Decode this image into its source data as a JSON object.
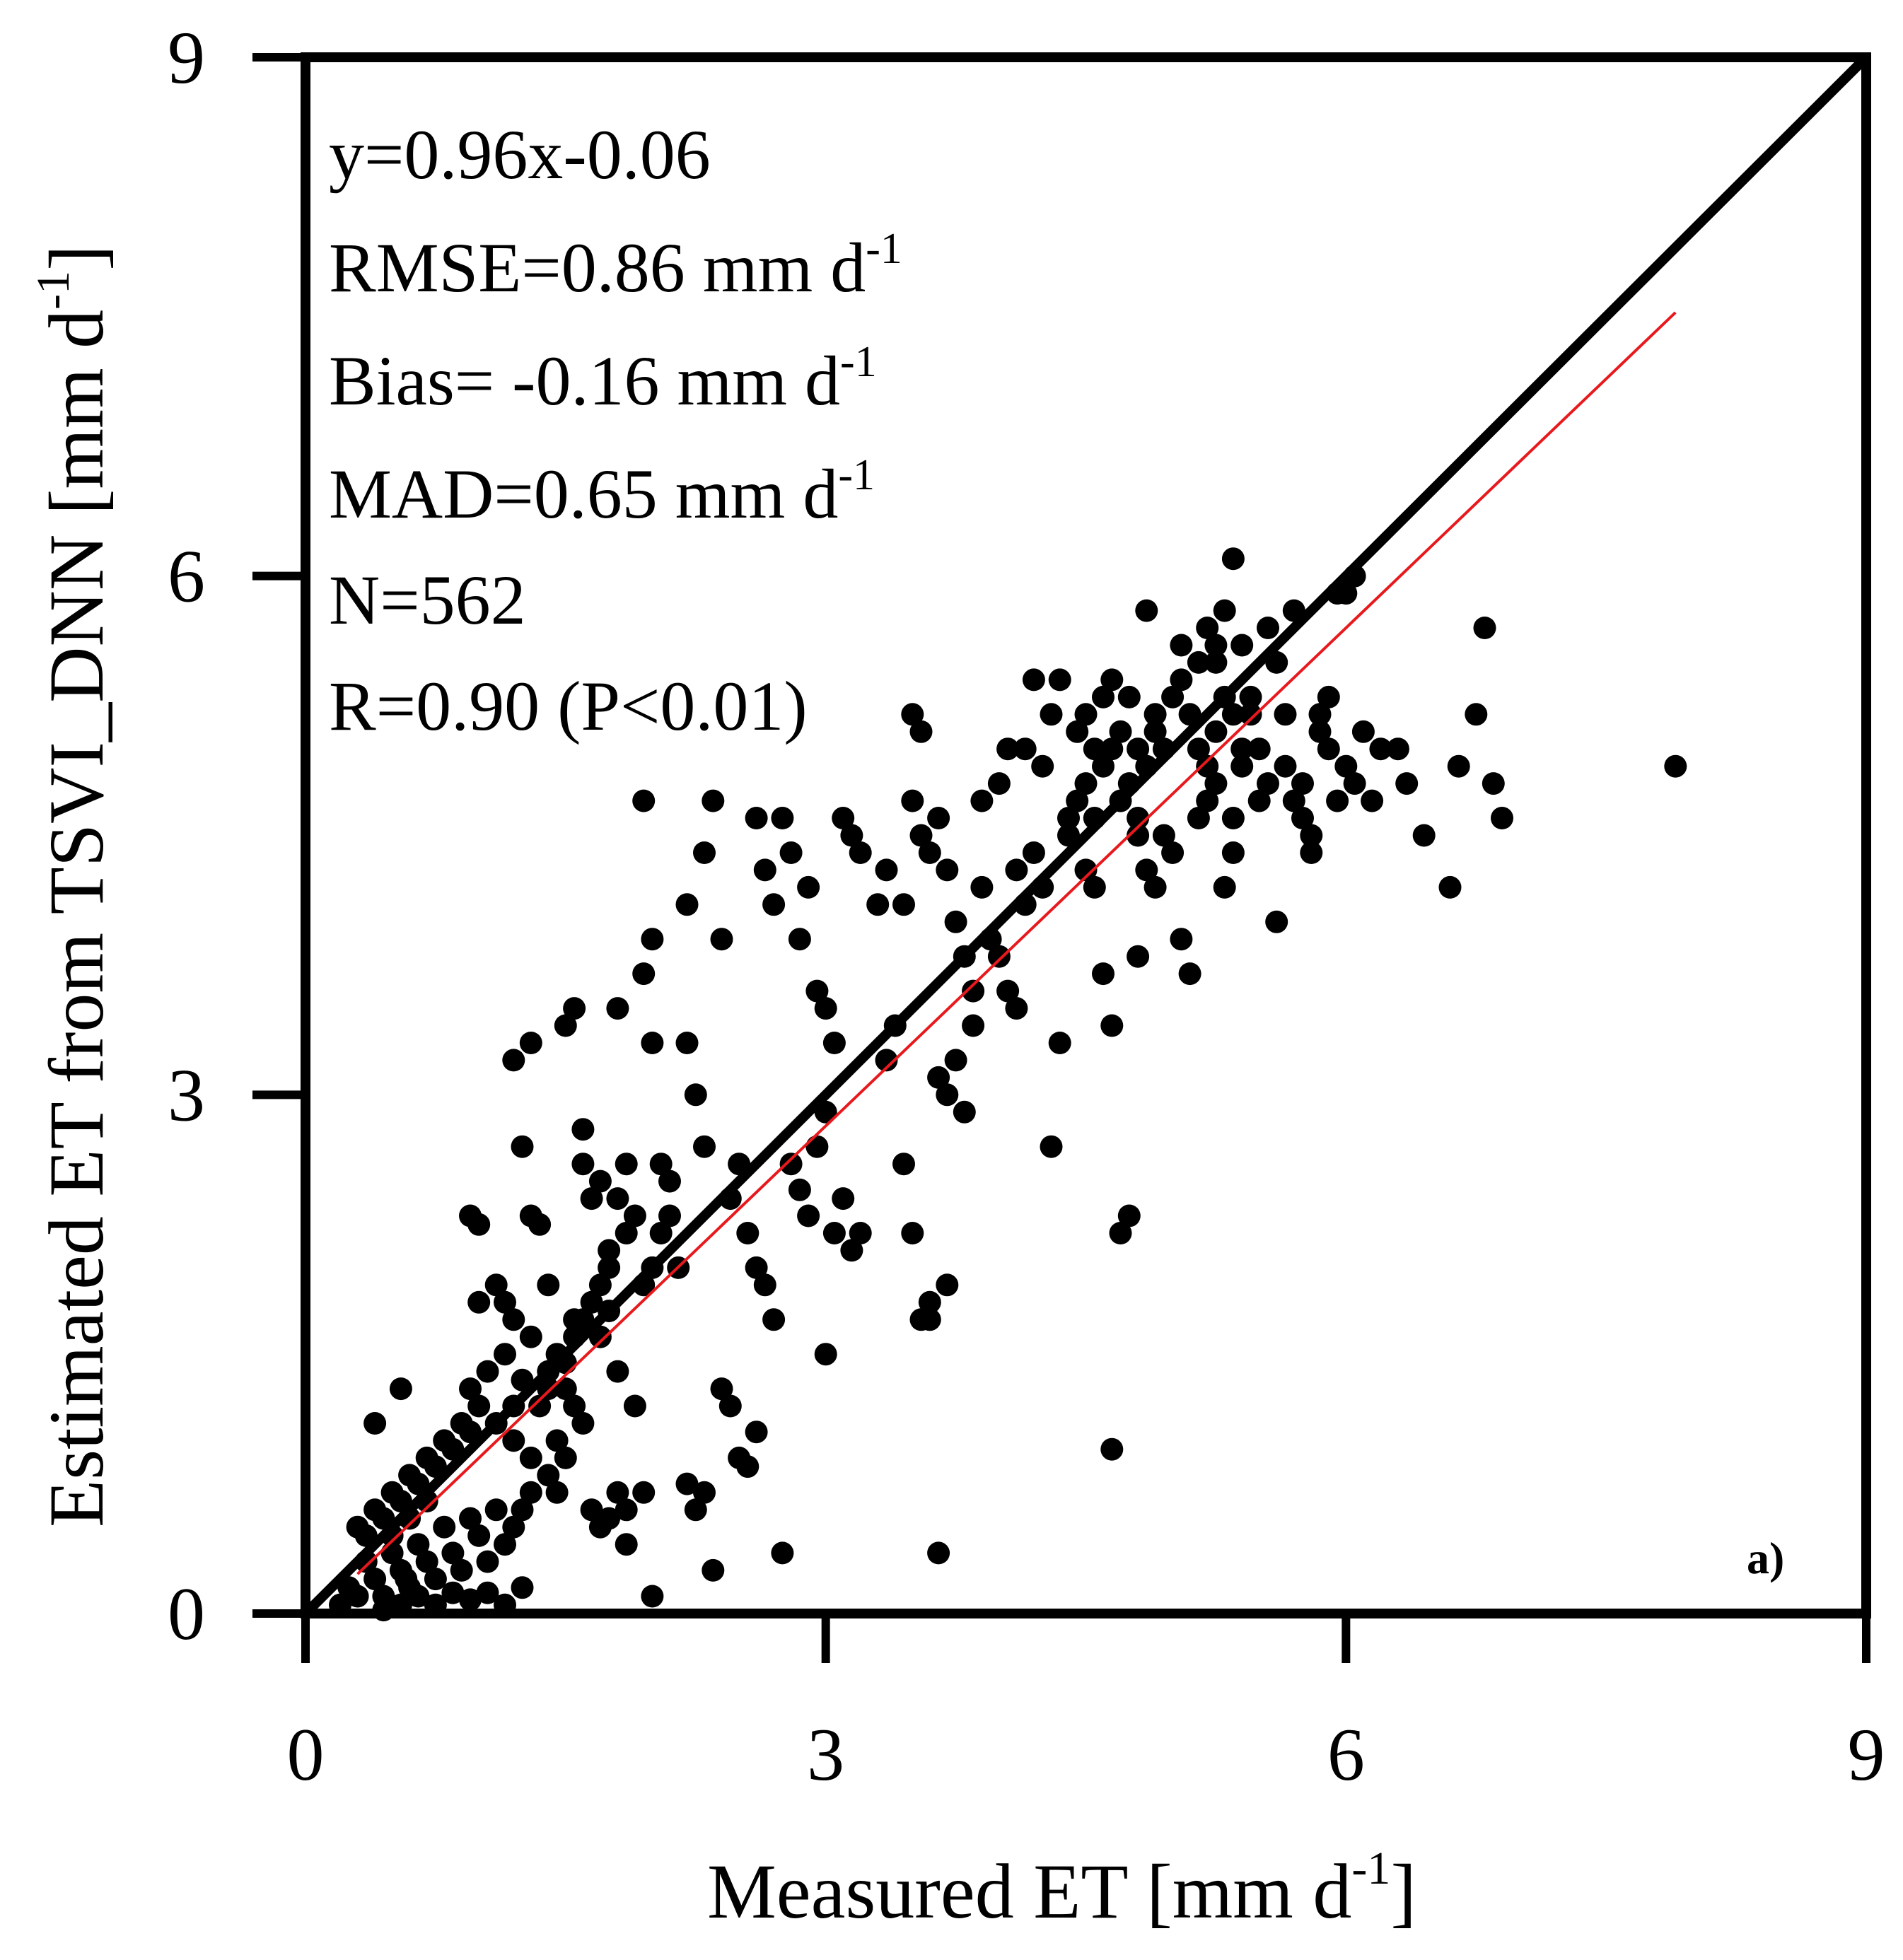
{
  "chart_data": {
    "type": "scatter",
    "xlabel": "Measured ET [mm d",
    "ylabel": "Estimated ET from TSVI_DNN [mm d",
    "unit_sup": "-1",
    "label_close": "]",
    "xlim": [
      0,
      9
    ],
    "ylim": [
      0,
      9
    ],
    "xticks": [
      "0",
      "3",
      "6",
      "9"
    ],
    "yticks": [
      "0",
      "3",
      "6",
      "9"
    ],
    "panel_label": "a)",
    "stats": [
      {
        "text": "y=0.96x-0.06",
        "sup": ""
      },
      {
        "text": "RMSE=0.86 mm d",
        "sup": "-1"
      },
      {
        "text": "Bias= -0.16 mm d",
        "sup": "-1"
      },
      {
        "text": "MAD=0.65 mm d",
        "sup": "-1"
      },
      {
        "text": "N=562",
        "sup": ""
      },
      {
        "text": "R=0.90 (P<0.01)",
        "sup": ""
      }
    ],
    "one_to_one_line": {
      "from": [
        0,
        0
      ],
      "to": [
        9,
        9
      ],
      "color": "#000000"
    },
    "fit_line": {
      "slope": 0.96,
      "intercept": -0.06,
      "x_range": [
        0.3,
        7.9
      ],
      "color": "#e8191d"
    },
    "points_color": "#000000",
    "points": [
      [
        0.2,
        0.05
      ],
      [
        0.25,
        0.15
      ],
      [
        0.3,
        0.1
      ],
      [
        0.35,
        0.3
      ],
      [
        0.4,
        0.2
      ],
      [
        0.45,
        0.1
      ],
      [
        0.5,
        0.35
      ],
      [
        0.55,
        0.25
      ],
      [
        0.6,
        0.15
      ],
      [
        0.65,
        0.4
      ],
      [
        0.7,
        0.3
      ],
      [
        0.75,
        0.2
      ],
      [
        0.8,
        0.5
      ],
      [
        0.85,
        0.35
      ],
      [
        0.9,
        0.25
      ],
      [
        0.95,
        0.55
      ],
      [
        1.0,
        0.45
      ],
      [
        1.05,
        0.3
      ],
      [
        1.1,
        0.6
      ],
      [
        1.15,
        0.4
      ],
      [
        0.3,
        0.5
      ],
      [
        0.4,
        0.6
      ],
      [
        0.5,
        0.7
      ],
      [
        0.6,
        0.8
      ],
      [
        0.7,
        0.9
      ],
      [
        0.8,
        1.0
      ],
      [
        0.9,
        1.1
      ],
      [
        0.5,
        0.45
      ],
      [
        0.6,
        0.55
      ],
      [
        0.7,
        0.65
      ],
      [
        0.35,
        0.45
      ],
      [
        0.45,
        0.55
      ],
      [
        0.55,
        0.65
      ],
      [
        0.65,
        0.75
      ],
      [
        0.75,
        0.85
      ],
      [
        0.85,
        0.95
      ],
      [
        0.95,
        1.05
      ],
      [
        1.2,
        0.5
      ],
      [
        1.25,
        0.6
      ],
      [
        1.3,
        0.7
      ],
      [
        0.55,
        0.05
      ],
      [
        0.65,
        0.1
      ],
      [
        0.75,
        0.05
      ],
      [
        0.85,
        0.12
      ],
      [
        0.95,
        0.08
      ],
      [
        1.05,
        0.12
      ],
      [
        1.15,
        0.05
      ],
      [
        1.25,
        0.15
      ],
      [
        0.45,
        0.02
      ],
      [
        0.58,
        0.2
      ],
      [
        0.4,
        1.1
      ],
      [
        0.55,
        1.3
      ],
      [
        0.95,
        2.3
      ],
      [
        1.0,
        2.25
      ],
      [
        1.15,
        1.8
      ],
      [
        1.2,
        3.2
      ],
      [
        1.25,
        2.7
      ],
      [
        1.3,
        3.3
      ],
      [
        1.3,
        2.3
      ],
      [
        1.35,
        2.25
      ],
      [
        1.4,
        1.9
      ],
      [
        1.45,
        1.5
      ],
      [
        1.5,
        1.45
      ],
      [
        1.55,
        1.7
      ],
      [
        1.6,
        2.8
      ],
      [
        1.65,
        2.4
      ],
      [
        1.7,
        1.6
      ],
      [
        1.75,
        1.75
      ],
      [
        1.8,
        3.5
      ],
      [
        1.85,
        2.2
      ],
      [
        1.5,
        3.4
      ],
      [
        1.55,
        3.5
      ],
      [
        1.6,
        2.6
      ],
      [
        1.7,
        2.5
      ],
      [
        1.75,
        2.0
      ],
      [
        1.8,
        1.4
      ],
      [
        1.9,
        1.2
      ],
      [
        1.95,
        0.7
      ],
      [
        2.0,
        0.1
      ],
      [
        1.85,
        0.4
      ],
      [
        1.4,
        0.8
      ],
      [
        1.45,
        0.7
      ],
      [
        1.5,
        0.9
      ],
      [
        1.55,
        1.2
      ],
      [
        1.6,
        1.1
      ],
      [
        1.65,
        0.6
      ],
      [
        1.7,
        0.5
      ],
      [
        1.75,
        0.55
      ],
      [
        1.8,
        0.7
      ],
      [
        1.85,
        0.6
      ],
      [
        1.95,
        4.7
      ],
      [
        2.0,
        3.9
      ],
      [
        1.95,
        3.7
      ],
      [
        2.0,
        3.3
      ],
      [
        2.05,
        2.6
      ],
      [
        2.1,
        2.5
      ],
      [
        2.15,
        2.0
      ],
      [
        2.2,
        3.3
      ],
      [
        2.25,
        3.0
      ],
      [
        2.3,
        2.7
      ],
      [
        2.2,
        4.1
      ],
      [
        2.3,
        4.4
      ],
      [
        2.35,
        4.7
      ],
      [
        2.4,
        3.9
      ],
      [
        2.45,
        2.4
      ],
      [
        2.5,
        2.6
      ],
      [
        2.55,
        2.2
      ],
      [
        2.6,
        2.0
      ],
      [
        2.65,
        1.9
      ],
      [
        2.7,
        1.7
      ],
      [
        2.25,
        0.6
      ],
      [
        2.3,
        0.7
      ],
      [
        2.35,
        0.25
      ],
      [
        2.4,
        1.3
      ],
      [
        2.45,
        1.2
      ],
      [
        2.5,
        0.9
      ],
      [
        2.55,
        0.85
      ],
      [
        2.6,
        1.05
      ],
      [
        2.75,
        0.35
      ],
      [
        2.2,
        0.75
      ],
      [
        2.6,
        4.6
      ],
      [
        2.65,
        4.3
      ],
      [
        2.7,
        4.1
      ],
      [
        2.75,
        4.6
      ],
      [
        2.8,
        4.4
      ],
      [
        2.85,
        3.9
      ],
      [
        2.9,
        4.2
      ],
      [
        2.95,
        3.6
      ],
      [
        3.0,
        3.5
      ],
      [
        3.05,
        3.3
      ],
      [
        2.8,
        2.6
      ],
      [
        2.85,
        2.45
      ],
      [
        2.9,
        2.3
      ],
      [
        2.95,
        2.7
      ],
      [
        3.0,
        2.9
      ],
      [
        3.05,
        2.2
      ],
      [
        3.1,
        2.4
      ],
      [
        3.15,
        2.1
      ],
      [
        3.2,
        2.2
      ],
      [
        3.0,
        1.5
      ],
      [
        3.1,
        4.6
      ],
      [
        3.15,
        4.5
      ],
      [
        3.2,
        4.4
      ],
      [
        3.3,
        4.1
      ],
      [
        3.35,
        3.2
      ],
      [
        3.4,
        3.4
      ],
      [
        3.45,
        2.6
      ],
      [
        3.5,
        2.2
      ],
      [
        3.55,
        1.7
      ],
      [
        3.6,
        1.8
      ],
      [
        3.35,
        4.3
      ],
      [
        3.45,
        4.1
      ],
      [
        3.5,
        4.7
      ],
      [
        3.55,
        4.5
      ],
      [
        3.6,
        4.4
      ],
      [
        3.65,
        4.6
      ],
      [
        3.7,
        4.3
      ],
      [
        3.75,
        4.0
      ],
      [
        3.8,
        3.8
      ],
      [
        3.85,
        3.6
      ],
      [
        3.5,
        5.2
      ],
      [
        3.55,
        5.1
      ],
      [
        3.65,
        3.1
      ],
      [
        3.7,
        3.0
      ],
      [
        3.75,
        3.2
      ],
      [
        3.8,
        2.9
      ],
      [
        3.7,
        1.9
      ],
      [
        3.65,
        0.35
      ],
      [
        3.6,
        1.7
      ],
      [
        3.85,
        3.4
      ],
      [
        3.9,
        4.7
      ],
      [
        4.0,
        4.8
      ],
      [
        4.05,
        5.0
      ],
      [
        4.1,
        4.3
      ],
      [
        4.15,
        5.0
      ],
      [
        4.2,
        5.4
      ],
      [
        4.25,
        4.9
      ],
      [
        4.3,
        5.2
      ],
      [
        4.35,
        5.4
      ],
      [
        4.4,
        4.6
      ],
      [
        3.9,
        4.2
      ],
      [
        3.95,
        3.9
      ],
      [
        4.0,
        3.8
      ],
      [
        4.05,
        3.6
      ],
      [
        4.1,
        3.5
      ],
      [
        4.15,
        4.1
      ],
      [
        4.2,
        4.4
      ],
      [
        4.25,
        4.2
      ],
      [
        4.3,
        2.7
      ],
      [
        4.35,
        3.3
      ],
      [
        4.4,
        4.5
      ],
      [
        4.45,
        4.7
      ],
      [
        4.5,
        4.8
      ],
      [
        4.55,
        4.6
      ],
      [
        4.6,
        4.9
      ],
      [
        4.65,
        5.0
      ],
      [
        4.7,
        4.7
      ],
      [
        4.75,
        4.8
      ],
      [
        4.8,
        4.6
      ],
      [
        4.85,
        4.9
      ],
      [
        4.45,
        5.1
      ],
      [
        4.5,
        5.2
      ],
      [
        4.55,
        5.0
      ],
      [
        4.6,
        5.3
      ],
      [
        4.65,
        5.4
      ],
      [
        4.7,
        5.1
      ],
      [
        4.75,
        5.3
      ],
      [
        4.8,
        4.5
      ],
      [
        4.85,
        5.8
      ],
      [
        4.9,
        5.2
      ],
      [
        4.5,
        4.3
      ],
      [
        4.55,
        4.2
      ],
      [
        4.6,
        3.7
      ],
      [
        4.65,
        3.4
      ],
      [
        4.7,
        2.2
      ],
      [
        4.75,
        2.3
      ],
      [
        4.8,
        3.8
      ],
      [
        4.85,
        4.3
      ],
      [
        4.9,
        4.2
      ],
      [
        4.65,
        0.95
      ],
      [
        4.95,
        5.0
      ],
      [
        5.0,
        5.3
      ],
      [
        5.05,
        5.4
      ],
      [
        5.1,
        5.2
      ],
      [
        5.15,
        5.0
      ],
      [
        5.2,
        4.9
      ],
      [
        5.25,
        5.1
      ],
      [
        5.3,
        5.3
      ],
      [
        5.35,
        5.2
      ],
      [
        5.4,
        5.0
      ],
      [
        4.95,
        4.5
      ],
      [
        5.0,
        4.4
      ],
      [
        5.05,
        3.9
      ],
      [
        5.1,
        3.7
      ],
      [
        5.15,
        4.6
      ],
      [
        5.2,
        4.7
      ],
      [
        5.25,
        4.8
      ],
      [
        5.3,
        4.2
      ],
      [
        5.35,
        4.4
      ],
      [
        5.4,
        4.9
      ],
      [
        5.2,
        5.7
      ],
      [
        5.25,
        5.5
      ],
      [
        5.3,
        5.8
      ],
      [
        5.35,
        6.1
      ],
      [
        5.4,
        5.6
      ],
      [
        5.45,
        5.3
      ],
      [
        5.5,
        5.0
      ],
      [
        5.55,
        4.8
      ],
      [
        5.6,
        4.0
      ],
      [
        5.65,
        4.9
      ],
      [
        5.7,
        5.8
      ],
      [
        5.75,
        4.8
      ],
      [
        5.8,
        4.5
      ],
      [
        5.85,
        5.2
      ],
      [
        5.9,
        5.0
      ],
      [
        5.95,
        4.7
      ],
      [
        6.0,
        4.9
      ],
      [
        6.05,
        4.8
      ],
      [
        6.1,
        5.1
      ],
      [
        6.15,
        4.7
      ],
      [
        5.55,
        5.7
      ],
      [
        5.6,
        5.5
      ],
      [
        5.65,
        5.2
      ],
      [
        5.7,
        4.7
      ],
      [
        5.75,
        4.6
      ],
      [
        5.8,
        4.4
      ],
      [
        5.85,
        5.1
      ],
      [
        5.9,
        5.3
      ],
      [
        5.95,
        5.9
      ],
      [
        6.0,
        5.9
      ],
      [
        6.2,
        5.0
      ],
      [
        6.3,
        5.0
      ],
      [
        6.35,
        4.8
      ],
      [
        6.45,
        4.5
      ],
      [
        6.6,
        4.2
      ],
      [
        6.65,
        4.9
      ],
      [
        6.75,
        5.2
      ],
      [
        6.8,
        5.7
      ],
      [
        6.85,
        4.8
      ],
      [
        6.9,
        4.6
      ],
      [
        7.9,
        4.9
      ],
      [
        6.05,
        6.0
      ],
      [
        5.45,
        5.2
      ],
      [
        5.35,
        4.6
      ],
      [
        5.5,
        4.7
      ],
      [
        5.25,
        5.6
      ],
      [
        5.15,
        5.5
      ],
      [
        5.05,
        5.6
      ],
      [
        4.9,
        5.1
      ],
      [
        4.8,
        5.0
      ],
      [
        1.0,
        1.8
      ],
      [
        1.1,
        1.9
      ],
      [
        1.2,
        1.7
      ],
      [
        1.3,
        1.6
      ],
      [
        1.35,
        1.2
      ],
      [
        1.4,
        1.4
      ],
      [
        1.45,
        1.0
      ],
      [
        1.5,
        1.3
      ],
      [
        1.55,
        1.6
      ],
      [
        1.6,
        1.7
      ],
      [
        1.65,
        1.8
      ],
      [
        1.7,
        1.9
      ],
      [
        1.75,
        2.1
      ],
      [
        1.8,
        2.4
      ],
      [
        1.85,
        2.6
      ],
      [
        1.9,
        2.3
      ],
      [
        1.95,
        1.9
      ],
      [
        2.0,
        2.0
      ],
      [
        2.05,
        2.2
      ],
      [
        2.1,
        2.3
      ],
      [
        1.2,
        1.2
      ],
      [
        1.25,
        1.35
      ],
      [
        1.15,
        1.5
      ],
      [
        1.05,
        1.4
      ],
      [
        0.95,
        1.3
      ],
      [
        1.0,
        1.2
      ],
      [
        1.1,
        1.1
      ],
      [
        1.2,
        1.0
      ],
      [
        1.3,
        0.9
      ],
      [
        1.4,
        1.3
      ]
    ]
  }
}
